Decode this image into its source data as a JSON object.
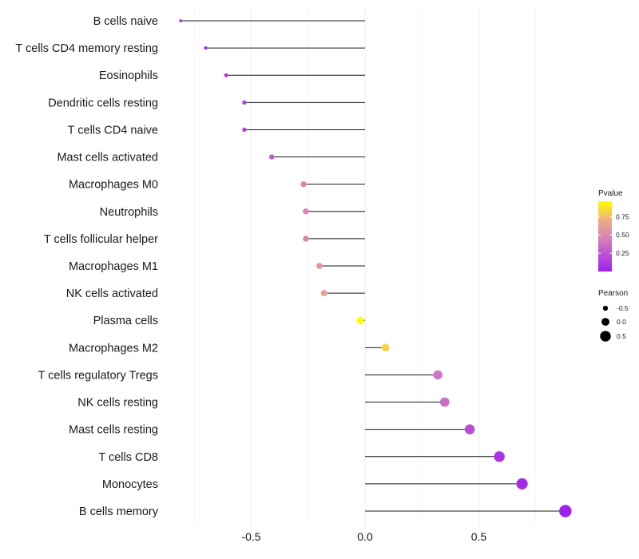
{
  "chart_data": {
    "type": "lollipop",
    "title": "",
    "xlabel": "",
    "ylabel": "",
    "xlim": [
      -0.88,
      1.0
    ],
    "x_ticks": [
      -0.5,
      0.0,
      0.5
    ],
    "x_tick_labels": [
      "-0.5",
      "0.0",
      "0.5"
    ],
    "grid": true,
    "series": [
      {
        "name": "B cells naive",
        "pearson": -0.81,
        "pvalue": 0.02
      },
      {
        "name": "T cells CD4 memory resting",
        "pearson": -0.7,
        "pvalue": 0.05
      },
      {
        "name": "Eosinophils",
        "pearson": -0.61,
        "pvalue": 0.1
      },
      {
        "name": "Dendritic cells resting",
        "pearson": -0.53,
        "pvalue": 0.17
      },
      {
        "name": "T cells CD4 naive",
        "pearson": -0.53,
        "pvalue": 0.17
      },
      {
        "name": "Mast cells activated",
        "pearson": -0.41,
        "pvalue": 0.29
      },
      {
        "name": "Macrophages M0",
        "pearson": -0.27,
        "pvalue": 0.48
      },
      {
        "name": "Neutrophils",
        "pearson": -0.26,
        "pvalue": 0.49
      },
      {
        "name": "T cells follicular helper",
        "pearson": -0.26,
        "pvalue": 0.49
      },
      {
        "name": "Macrophages M1",
        "pearson": -0.2,
        "pvalue": 0.6
      },
      {
        "name": "NK cells activated",
        "pearson": -0.18,
        "pvalue": 0.64
      },
      {
        "name": "Plasma cells",
        "pearson": -0.02,
        "pvalue": 0.96
      },
      {
        "name": "Macrophages M2",
        "pearson": 0.09,
        "pvalue": 0.82
      },
      {
        "name": "T cells regulatory  Tregs",
        "pearson": 0.32,
        "pvalue": 0.4
      },
      {
        "name": "NK cells resting",
        "pearson": 0.35,
        "pvalue": 0.36
      },
      {
        "name": "Mast cells resting",
        "pearson": 0.46,
        "pvalue": 0.21
      },
      {
        "name": "T cells CD8",
        "pearson": 0.59,
        "pvalue": 0.09
      },
      {
        "name": "Monocytes",
        "pearson": 0.69,
        "pvalue": 0.04
      },
      {
        "name": "B cells memory",
        "pearson": 0.88,
        "pvalue": 0.0
      }
    ],
    "legend": {
      "position": "right",
      "color": {
        "title": "Pvalue",
        "ticks": [
          0.25,
          0.5,
          0.75
        ],
        "tick_labels": [
          "0.25",
          "0.50",
          "0.75"
        ],
        "range": [
          0.0,
          0.96
        ],
        "colors": {
          "low": "#a020f0",
          "mid": "#cc6ec4",
          "high_mid": "#e8a890",
          "high": "#ffff00"
        }
      },
      "size": {
        "title": "Pearson",
        "items": [
          {
            "label": "-0.5",
            "value": -0.5
          },
          {
            "label": "0.0",
            "value": 0.0
          },
          {
            "label": "0.5",
            "value": 0.5
          }
        ]
      }
    }
  }
}
